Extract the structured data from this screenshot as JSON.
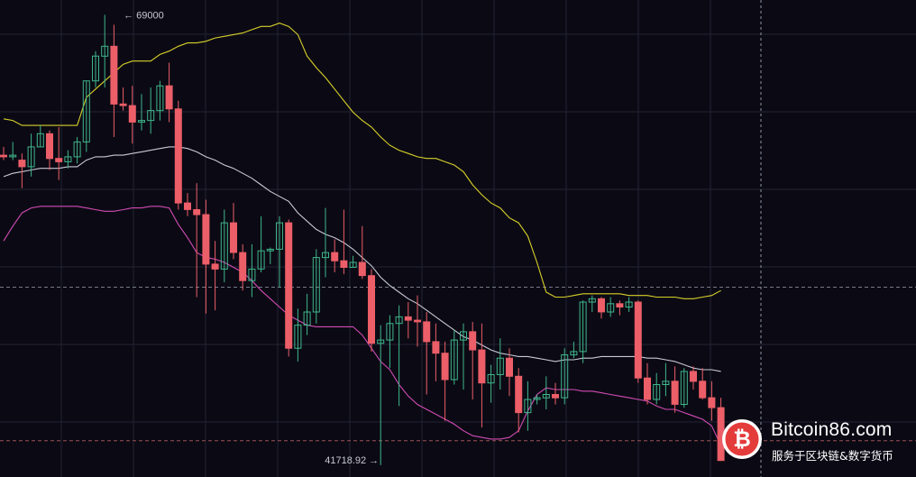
{
  "chart_data": {
    "type": "candlestick",
    "title": "",
    "xlabel": "",
    "ylabel": "",
    "grid": true,
    "ylim": [
      41000,
      69900
    ],
    "annotations": {
      "high_label": "← 69000",
      "low_label": "41718.92 →",
      "high_value": 69000,
      "low_value": 41718.92
    },
    "reference_lines": [
      {
        "value": 52500,
        "style": "dashed",
        "color": "#9aa0b0"
      },
      {
        "value": 43200,
        "style": "dashed",
        "color": "#d06a6a"
      }
    ],
    "colors": {
      "up": "#3fb68b",
      "down": "#ec5e68",
      "upper_band": "#d9d02a",
      "middle_band": "#c9c9d6",
      "lower_band": "#d24bb4",
      "grid": "#232235",
      "background": "#0b0a14"
    },
    "candles": [
      [
        60500,
        61000,
        60200,
        60400
      ],
      [
        60400,
        61300,
        60200,
        60500
      ],
      [
        60200,
        60600,
        58500,
        59800
      ],
      [
        59800,
        61800,
        59200,
        61000
      ],
      [
        61000,
        62300,
        61000,
        61800
      ],
      [
        61800,
        62000,
        59600,
        60300
      ],
      [
        60300,
        62200,
        59000,
        60100
      ],
      [
        60100,
        60800,
        59700,
        60400
      ],
      [
        60400,
        61600,
        60000,
        61300
      ],
      [
        61300,
        65000,
        60700,
        65000
      ],
      [
        65000,
        66800,
        64600,
        66500
      ],
      [
        66500,
        69000,
        64600,
        67100
      ],
      [
        67100,
        68400,
        61600,
        63600
      ],
      [
        63600,
        64600,
        63200,
        63500
      ],
      [
        63500,
        64700,
        61200,
        62500
      ],
      [
        62500,
        64200,
        62000,
        62600
      ],
      [
        62600,
        64600,
        61800,
        63200
      ],
      [
        63200,
        65000,
        62600,
        64700
      ],
      [
        64700,
        66100,
        62500,
        63300
      ],
      [
        63300,
        63800,
        57200,
        57600
      ],
      [
        57600,
        58200,
        56800,
        57200
      ],
      [
        57200,
        58800,
        51900,
        56900
      ],
      [
        56900,
        57800,
        50900,
        53900
      ],
      [
        53900,
        55300,
        51100,
        53600
      ],
      [
        53600,
        57200,
        52800,
        56400
      ],
      [
        56400,
        57600,
        54200,
        54600
      ],
      [
        54600,
        55100,
        52300,
        52900
      ],
      [
        52900,
        55100,
        51900,
        53600
      ],
      [
        53600,
        56800,
        53400,
        54700
      ],
      [
        54700,
        54900,
        53900,
        54800
      ],
      [
        54800,
        56800,
        52500,
        56400
      ],
      [
        56400,
        56600,
        48300,
        48800
      ],
      [
        48800,
        51200,
        48000,
        50200
      ],
      [
        50200,
        52100,
        49600,
        51000
      ],
      [
        51000,
        54800,
        50300,
        54300
      ],
      [
        54300,
        57300,
        53100,
        54600
      ],
      [
        54600,
        55400,
        53400,
        54100
      ],
      [
        54100,
        57200,
        53300,
        53700
      ],
      [
        53700,
        54400,
        53700,
        54000
      ],
      [
        54000,
        56200,
        53000,
        53200
      ],
      [
        53200,
        53600,
        48600,
        49100
      ],
      [
        49100,
        50200,
        41718.92,
        49300
      ],
      [
        49300,
        50800,
        47600,
        50300
      ],
      [
        50300,
        51400,
        45300,
        50700
      ],
      [
        50700,
        51600,
        49400,
        50500
      ],
      [
        50500,
        52000,
        48900,
        50400
      ],
      [
        50400,
        51000,
        46000,
        49200
      ],
      [
        49200,
        50300,
        46800,
        48500
      ],
      [
        48500,
        49200,
        44400,
        46900
      ],
      [
        46900,
        49900,
        46600,
        49300
      ],
      [
        49300,
        50300,
        46300,
        49800
      ],
      [
        49800,
        50400,
        45700,
        48700
      ],
      [
        48700,
        50300,
        44000,
        46700
      ],
      [
        46700,
        47800,
        45500,
        47200
      ],
      [
        47200,
        49400,
        46300,
        48200
      ],
      [
        48200,
        48800,
        45900,
        47100
      ],
      [
        47100,
        47600,
        43700,
        44900
      ],
      [
        44900,
        46800,
        43800,
        45700
      ],
      [
        45700,
        46000,
        45400,
        45800
      ],
      [
        45800,
        47100,
        45100,
        46000
      ],
      [
        46000,
        46700,
        45400,
        45800
      ],
      [
        45800,
        48800,
        45400,
        48400
      ],
      [
        48400,
        49200,
        48200,
        48600
      ],
      [
        48600,
        51700,
        47900,
        51600
      ],
      [
        51600,
        52000,
        51000,
        51800
      ],
      [
        51800,
        51900,
        50600,
        51000
      ],
      [
        51000,
        51900,
        50700,
        51500
      ],
      [
        51500,
        51700,
        50800,
        51300
      ],
      [
        51300,
        51900,
        51000,
        51600
      ],
      [
        51600,
        51700,
        46700,
        47000
      ],
      [
        47000,
        47900,
        45400,
        45700
      ],
      [
        45700,
        47300,
        45400,
        46600
      ],
      [
        46600,
        47900,
        45900,
        46800
      ],
      [
        46800,
        47700,
        44900,
        45400
      ],
      [
        45400,
        47600,
        45200,
        47400
      ],
      [
        47400,
        47700,
        46300,
        46800
      ],
      [
        46800,
        47600,
        45700,
        45800
      ],
      [
        45800,
        46800,
        44400,
        45200
      ],
      [
        45200,
        45800,
        42000,
        42000
      ]
    ],
    "bands": {
      "upper": [
        62700,
        62600,
        62300,
        62300,
        62300,
        62300,
        62300,
        62300,
        62300,
        64000,
        64500,
        65000,
        65500,
        66000,
        66200,
        66200,
        66200,
        66600,
        66800,
        67100,
        67300,
        67300,
        67400,
        67600,
        67700,
        67800,
        67900,
        68100,
        68300,
        68300,
        68500,
        68300,
        67800,
        66500,
        65800,
        65200,
        64500,
        63800,
        63100,
        62600,
        62200,
        61600,
        61100,
        60800,
        60600,
        60400,
        60300,
        60300,
        60100,
        59900,
        59500,
        58700,
        58100,
        57600,
        57300,
        56700,
        56400,
        55600,
        54000,
        52200,
        51900,
        51900,
        52000,
        52100,
        52100,
        52100,
        52100,
        52100,
        52000,
        52000,
        52000,
        51900,
        51900,
        51900,
        51800,
        51800,
        51900,
        52000,
        52300
      ],
      "middle": [
        59200,
        59400,
        59500,
        59600,
        59700,
        59700,
        59700,
        59800,
        59800,
        60200,
        60400,
        60400,
        60500,
        60500,
        60600,
        60700,
        60800,
        60900,
        61000,
        61000,
        60900,
        60700,
        60400,
        60200,
        59900,
        59700,
        59400,
        59100,
        58700,
        58300,
        58000,
        57700,
        57000,
        56500,
        56000,
        55700,
        55500,
        55200,
        54800,
        54300,
        53800,
        53100,
        52600,
        52200,
        51800,
        51500,
        51100,
        50700,
        50300,
        49900,
        49500,
        49300,
        49000,
        48700,
        48500,
        48400,
        48300,
        48300,
        48200,
        48100,
        48000,
        48100,
        48100,
        48200,
        48200,
        48300,
        48300,
        48300,
        48300,
        48300,
        48200,
        48200,
        48100,
        48000,
        47800,
        47600,
        47500,
        47500,
        47400
      ],
      "lower": [
        55300,
        56200,
        57000,
        57300,
        57400,
        57400,
        57400,
        57400,
        57400,
        57300,
        57200,
        57100,
        57100,
        57200,
        57300,
        57300,
        57400,
        57400,
        57300,
        56300,
        55500,
        54600,
        54300,
        54200,
        54000,
        53700,
        53400,
        52900,
        52300,
        51800,
        51300,
        50800,
        50500,
        50200,
        50100,
        50100,
        50100,
        50100,
        50100,
        49600,
        48800,
        48000,
        47500,
        46600,
        45900,
        45400,
        45100,
        44800,
        44500,
        44200,
        43800,
        43500,
        43400,
        43300,
        43300,
        43400,
        43800,
        45000,
        46000,
        46400,
        46300,
        46300,
        46300,
        46200,
        46200,
        46100,
        46000,
        45900,
        45800,
        45700,
        45600,
        45300,
        45100,
        45100,
        44900,
        44700,
        44500,
        44100,
        42900
      ]
    }
  },
  "watermark": {
    "name": "Bitcoin86.com",
    "tagline": "服务于区块链&数字货币",
    "logo_symbol": "₿"
  }
}
